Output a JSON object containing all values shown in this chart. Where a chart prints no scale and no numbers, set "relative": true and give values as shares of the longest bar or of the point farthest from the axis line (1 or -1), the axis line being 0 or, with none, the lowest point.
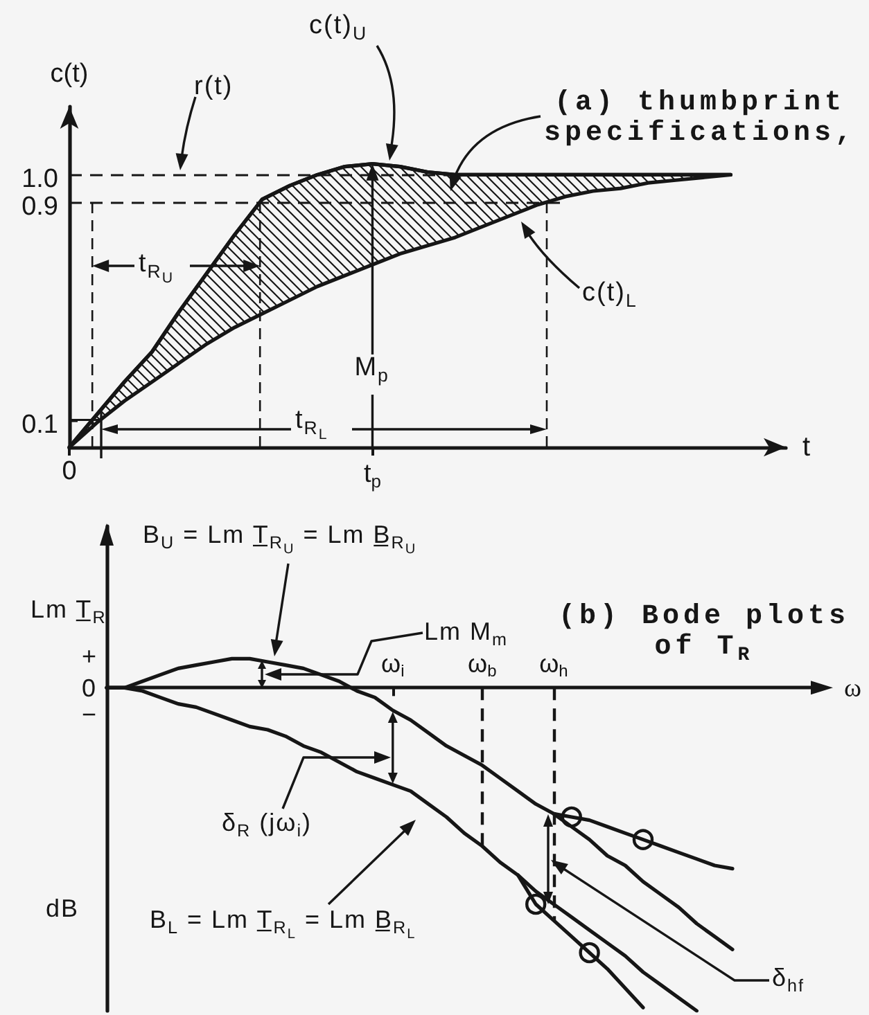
{
  "chart_data": [
    {
      "type": "line",
      "title": "(a) thumbprint specifications,",
      "xlabel": "t",
      "ylabel": "c(t)",
      "categories": [
        "0",
        null,
        null,
        null,
        null,
        null,
        null,
        null,
        null,
        null,
        null,
        "t$_{p}$",
        null,
        null,
        null,
        null,
        null,
        null,
        null,
        null,
        null,
        null,
        null,
        null,
        null,
        null,
        null
      ],
      "ylim": [
        0,
        1.25
      ],
      "yticks": [
        0.1,
        0.9,
        {
          "value": 1,
          "label": "1.0"
        }
      ],
      "series": [
        {
          "color": "#161616",
          "values": [
            0,
            0.12,
            0.24,
            0.35,
            0.5,
            0.64,
            0.78,
            0.91,
            0.96,
            1,
            1.03,
            1.04,
            1.03,
            1.01,
            1,
            1,
            1,
            1,
            1,
            1,
            1,
            1,
            1,
            1,
            1,
            null,
            null
          ],
          "upper": [
            0,
            0.12,
            0.24,
            0.35,
            0.5,
            0.64,
            0.78,
            0.91,
            0.96,
            1,
            1.03,
            1.04,
            1.03,
            1.01,
            1,
            1,
            1,
            1,
            1,
            1,
            1,
            1,
            1,
            1,
            1,
            null,
            null
          ],
          "lower": [
            0,
            0.09,
            0.17,
            0.24,
            0.31,
            0.38,
            0.44,
            0.49,
            0.54,
            0.59,
            0.63,
            0.67,
            0.71,
            0.74,
            0.77,
            0.81,
            0.85,
            0.89,
            0.92,
            0.94,
            0.95,
            0.97,
            0.98,
            0.99,
            1,
            null,
            null
          ]
        }
      ],
      "ref_lines": [
        {
          "axis": "y",
          "value": 1,
          "label": "r(t)",
          "line_style": "dashed"
        },
        {
          "axis": "y",
          "value": 0.9,
          "line_style": "dashed"
        }
      ],
      "marker": "none",
      "annotations": [
        "c(t)$_{U}$",
        "t$_{R}$$_{U}$",
        {
          "text": "M$_{p}$",
          "x": "t$_{p}$",
          "y": 1.04
        },
        "t$_{R}$$_{L}$",
        "c(t)$_{L}$"
      ]
    },
    {
      "type": "line",
      "title": "(b) Bode plots of T$_{R}$",
      "xlabel": "ω",
      "ylabel": "Lm T̲$_{R}$",
      "relative": true,
      "categories": [
        null,
        null,
        null,
        null,
        null,
        null,
        null,
        null,
        null,
        null,
        null,
        null,
        null,
        null,
        null,
        null,
        "ω$_{i}$",
        null,
        null,
        null,
        null,
        "ω$_{b}$",
        null,
        null,
        null,
        "ω$_{h}$",
        null,
        null,
        null,
        null,
        null,
        null,
        null,
        null,
        null,
        null,
        null,
        null,
        null,
        null,
        null
      ],
      "series": [
        {
          "color": "#161616",
          "values": [
            0,
            0,
            0.02,
            0.04,
            0.06,
            0.07,
            0.08,
            0.09,
            0.09,
            0.08,
            0.07,
            0.06,
            0.04,
            0.02,
            -0.01,
            -0.03,
            -0.07,
            -0.1,
            -0.14,
            -0.18,
            -0.21,
            -0.24,
            -0.28,
            -0.32,
            -0.36,
            -0.39,
            -0.43,
            -0.47,
            -0.52,
            -0.55,
            -0.6,
            -0.64,
            -0.68,
            -0.73,
            -0.77,
            -0.81,
            null,
            null,
            null,
            null,
            null
          ]
        },
        {
          "color": "#161616",
          "values": [
            null,
            null,
            null,
            null,
            null,
            null,
            null,
            null,
            null,
            null,
            null,
            null,
            null,
            null,
            null,
            null,
            null,
            null,
            null,
            null,
            null,
            null,
            null,
            null,
            null,
            -0.39,
            -0.4,
            -0.41,
            -0.43,
            -0.45,
            -0.47,
            -0.49,
            -0.51,
            -0.53,
            -0.55,
            -0.56,
            null,
            null,
            null,
            null,
            null
          ]
        },
        {
          "color": "#161616",
          "values": [
            0,
            0,
            -0.01,
            -0.03,
            -0.05,
            -0.06,
            -0.08,
            -0.1,
            -0.12,
            -0.13,
            -0.15,
            -0.18,
            -0.2,
            -0.23,
            -0.26,
            -0.28,
            -0.3,
            -0.32,
            -0.36,
            -0.4,
            -0.45,
            -0.49,
            -0.54,
            -0.58,
            -0.63,
            -0.67,
            -0.71,
            -0.75,
            -0.79,
            -0.83,
            -0.88,
            -0.92,
            -0.96,
            -1,
            null,
            null,
            null,
            null,
            null,
            null,
            null
          ]
        },
        {
          "color": "#161616",
          "values": [
            null,
            null,
            null,
            null,
            null,
            null,
            null,
            null,
            null,
            null,
            null,
            null,
            null,
            null,
            null,
            null,
            null,
            null,
            null,
            null,
            null,
            null,
            null,
            -0.58,
            -0.67,
            -0.72,
            -0.77,
            -0.82,
            -0.87,
            -0.93,
            -0.99,
            null,
            null,
            null,
            null,
            null,
            null,
            null,
            null,
            null,
            null
          ]
        },
        {
          "type": "scatter",
          "marker": "circle",
          "color": "#161616",
          "values": [
            null,
            null,
            null,
            null,
            null,
            null,
            null,
            null,
            null,
            null,
            null,
            null,
            null,
            null,
            null,
            null,
            null,
            null,
            null,
            null,
            null,
            null,
            null,
            null,
            -0.67,
            null,
            -0.4,
            -0.82,
            null,
            null,
            -0.47,
            null,
            null,
            null,
            null,
            null,
            null,
            null,
            null,
            null,
            null
          ]
        }
      ],
      "ref_lines": [
        {
          "axis": "x",
          "value": "ω$_{b}$",
          "line_style": "dashed"
        },
        {
          "axis": "x",
          "value": "ω$_{h}$",
          "line_style": "dashed"
        }
      ],
      "marker": "none",
      "annotations": [
        "B$_{U}$ = Lm T̲$_{R}$$_{U}$ = Lm B̲$_{R}$$_{U}$",
        "Lm M$_{m}$",
        "δ$_{R}$ (jω$_{i}$)",
        "B$_{L}$ = Lm T̲$_{R}$$_{L}$ = Lm B̲$_{R}$$_{L}$",
        "δ$_{hf}$",
        "dB",
        "+",
        "0",
        "−"
      ]
    }
  ]
}
